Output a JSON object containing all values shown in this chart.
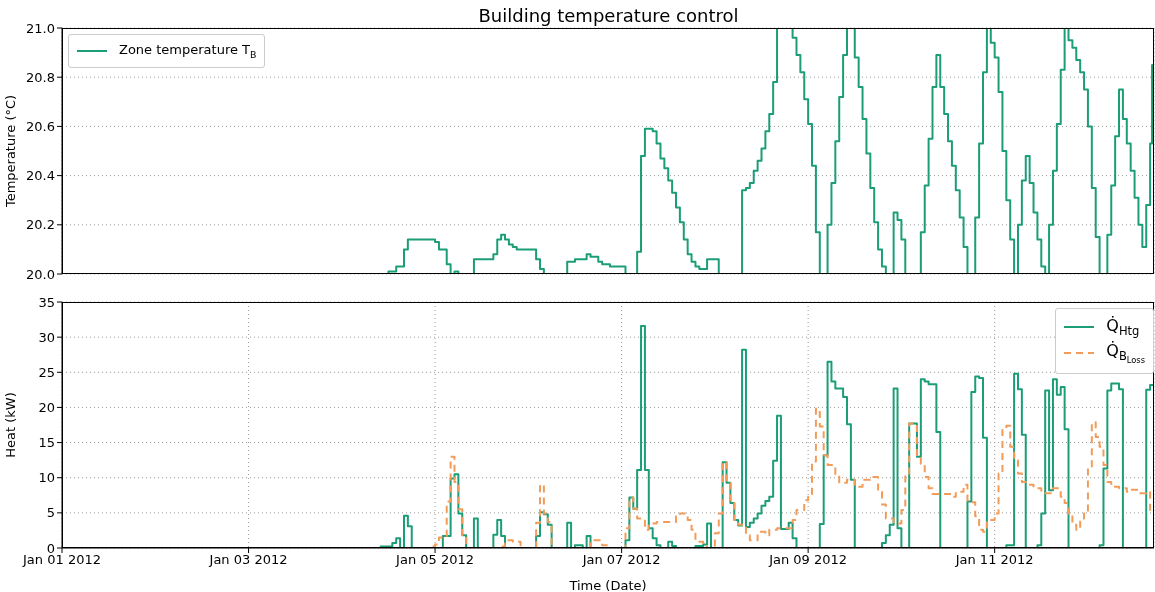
{
  "chart_data": [
    {
      "type": "step",
      "title": "Building temperature control",
      "ylabel": "Temperature (°C)",
      "xlim": [
        "2012-01-01",
        "2012-01-12T17:00"
      ],
      "xticks": [
        {
          "value": "2012-01-01",
          "label": null
        },
        {
          "value": "2012-01-03",
          "label": null
        },
        {
          "value": "2012-01-05",
          "label": null
        },
        {
          "value": "2012-01-07",
          "label": null
        },
        {
          "value": "2012-01-09",
          "label": null
        },
        {
          "value": "2012-01-11",
          "label": null
        }
      ],
      "ylim": [
        20,
        21
      ],
      "yticks": [
        {
          "value": 20,
          "label": "20.0"
        },
        20.2,
        20.4,
        20.6,
        20.8,
        {
          "value": 21,
          "label": "21.0"
        }
      ],
      "grid": true,
      "legend": "top left",
      "tick_labels": "y",
      "series": [
        {
          "name": "Zone temperature T$_{B}$",
          "color": "#1b9e77",
          "x": [
            "2012-01-01T00:00",
            "2012-01-04T12:00",
            "2012-01-04T14:00",
            "2012-01-04T16:00",
            "2012-01-04T17:00",
            "2012-01-05T00:00",
            "2012-01-05T01:00",
            "2012-01-05T03:00",
            "2012-01-05T04:00",
            "2012-01-05T05:00",
            "2012-01-05T06:00",
            "2012-01-05T10:00",
            "2012-01-05T15:00",
            "2012-01-05T16:00",
            "2012-01-05T17:00",
            "2012-01-05T18:00",
            "2012-01-05T19:00",
            "2012-01-05T20:00",
            "2012-01-05T21:00",
            "2012-01-06T02:00",
            "2012-01-06T03:00",
            "2012-01-06T04:00",
            "2012-01-06T10:00",
            "2012-01-06T12:00",
            "2012-01-06T15:00",
            "2012-01-06T16:00",
            "2012-01-06T18:00",
            "2012-01-06T19:00",
            "2012-01-06T21:00",
            "2012-01-07T01:00",
            "2012-01-07T04:00",
            "2012-01-07T05:00",
            "2012-01-07T06:00",
            "2012-01-07T08:00",
            "2012-01-07T09:00",
            "2012-01-07T10:00",
            "2012-01-07T11:00",
            "2012-01-07T12:00",
            "2012-01-07T13:00",
            "2012-01-07T14:00",
            "2012-01-07T15:00",
            "2012-01-07T16:00",
            "2012-01-07T17:00",
            "2012-01-07T18:00",
            "2012-01-07T19:00",
            "2012-01-07T20:00",
            "2012-01-07T22:00",
            "2012-01-08T01:00",
            "2012-01-08T07:00",
            "2012-01-08T08:00",
            "2012-01-08T09:00",
            "2012-01-08T10:00",
            "2012-01-08T11:00",
            "2012-01-08T12:00",
            "2012-01-08T13:00",
            "2012-01-08T14:00",
            "2012-01-08T15:00",
            "2012-01-08T16:00",
            "2012-01-08T20:00",
            "2012-01-08T21:00",
            "2012-01-08T22:00",
            "2012-01-08T23:00",
            "2012-01-09T00:00",
            "2012-01-09T01:00",
            "2012-01-09T02:00",
            "2012-01-09T03:00",
            "2012-01-09T05:00",
            "2012-01-09T06:00",
            "2012-01-09T07:00",
            "2012-01-09T08:00",
            "2012-01-09T09:00",
            "2012-01-09T10:00",
            "2012-01-09T12:00",
            "2012-01-09T13:00",
            "2012-01-09T14:00",
            "2012-01-09T15:00",
            "2012-01-09T16:00",
            "2012-01-09T17:00",
            "2012-01-09T18:00",
            "2012-01-09T19:00",
            "2012-01-09T20:00",
            "2012-01-09T22:00",
            "2012-01-09T23:00",
            "2012-01-10T00:00",
            "2012-01-10T01:00",
            "2012-01-10T05:00",
            "2012-01-10T06:00",
            "2012-01-10T07:00",
            "2012-01-10T08:00",
            "2012-01-10T09:00",
            "2012-01-10T10:00",
            "2012-01-10T11:00",
            "2012-01-10T12:00",
            "2012-01-10T13:00",
            "2012-01-10T14:00",
            "2012-01-10T15:00",
            "2012-01-10T16:00",
            "2012-01-10T17:00",
            "2012-01-10T19:00",
            "2012-01-10T20:00",
            "2012-01-10T21:00",
            "2012-01-10T22:00",
            "2012-01-10T23:00",
            "2012-01-11T00:00",
            "2012-01-11T01:00",
            "2012-01-11T02:00",
            "2012-01-11T03:00",
            "2012-01-11T04:00",
            "2012-01-11T05:00",
            "2012-01-11T06:00",
            "2012-01-11T07:00",
            "2012-01-11T08:00",
            "2012-01-11T09:00",
            "2012-01-11T10:00",
            "2012-01-11T11:00",
            "2012-01-11T12:00",
            "2012-01-11T13:00",
            "2012-01-11T14:00",
            "2012-01-11T15:00",
            "2012-01-11T16:00",
            "2012-01-11T17:00",
            "2012-01-11T18:00",
            "2012-01-11T19:00",
            "2012-01-11T20:00",
            "2012-01-11T21:00",
            "2012-01-11T22:00",
            "2012-01-11T23:00",
            "2012-01-12T00:00",
            "2012-01-12T01:00",
            "2012-01-12T02:00",
            "2012-01-12T03:00",
            "2012-01-12T05:00",
            "2012-01-12T06:00",
            "2012-01-12T07:00",
            "2012-01-12T08:00",
            "2012-01-12T09:00",
            "2012-01-12T10:00",
            "2012-01-12T11:00",
            "2012-01-12T12:00",
            "2012-01-12T13:00",
            "2012-01-12T14:00",
            "2012-01-12T15:00",
            "2012-01-12T16:00",
            "2012-01-12T16:30",
            "2012-01-12T17:00"
          ],
          "values": [
            20.0,
            20.01,
            20.03,
            20.1,
            20.14,
            20.13,
            20.1,
            20.04,
            20.0,
            20.01,
            20.0,
            20.06,
            20.08,
            20.14,
            20.16,
            20.14,
            20.12,
            20.11,
            20.1,
            20.06,
            20.02,
            20.0,
            20.05,
            20.06,
            20.08,
            20.07,
            20.05,
            20.04,
            20.03,
            20.0,
            20.09,
            20.48,
            20.59,
            20.58,
            20.53,
            20.47,
            20.43,
            20.38,
            20.33,
            20.27,
            20.21,
            20.14,
            20.08,
            20.05,
            20.03,
            20.02,
            20.06,
            20.0,
            20.34,
            20.35,
            20.37,
            20.42,
            20.46,
            20.51,
            20.58,
            20.65,
            20.78,
            21.0,
            20.96,
            20.89,
            20.82,
            20.71,
            20.61,
            20.44,
            20.17,
            20.0,
            20.2,
            20.37,
            20.54,
            20.72,
            20.89,
            21.0,
            20.88,
            20.76,
            20.63,
            20.49,
            20.35,
            20.21,
            20.1,
            20.03,
            20.0,
            20.25,
            20.22,
            20.14,
            20.0,
            20.17,
            20.36,
            20.55,
            20.76,
            20.89,
            20.76,
            20.65,
            20.54,
            20.44,
            20.34,
            20.23,
            20.11,
            20.0,
            20.23,
            20.53,
            20.82,
            21.0,
            20.94,
            20.88,
            20.74,
            20.5,
            20.3,
            20.14,
            20.0,
            20.2,
            20.38,
            20.48,
            20.37,
            20.25,
            20.14,
            20.03,
            20.0,
            20.2,
            20.42,
            20.61,
            20.83,
            21.0,
            20.95,
            20.92,
            20.87,
            20.82,
            20.75,
            20.6,
            20.35,
            20.15,
            20.0,
            20.16,
            20.36,
            20.56,
            20.75,
            20.63,
            20.53,
            20.42,
            20.31,
            20.2,
            20.11,
            20.28,
            20.53,
            20.85,
            20.85
          ]
        }
      ]
    },
    {
      "type": "step",
      "xlabel": "Time (Date)",
      "ylabel": "Heat (kW)",
      "xlim": [
        "2012-01-01",
        "2012-01-12T17:00"
      ],
      "xticks": [
        {
          "value": "2012-01-01",
          "label": "Jan 01 2012"
        },
        {
          "value": "2012-01-03",
          "label": "Jan 03 2012"
        },
        {
          "value": "2012-01-05",
          "label": "Jan 05 2012"
        },
        {
          "value": "2012-01-07",
          "label": "Jan 07 2012"
        },
        {
          "value": "2012-01-09",
          "label": "Jan 09 2012"
        },
        {
          "value": "2012-01-11",
          "label": "Jan 11 2012"
        }
      ],
      "ylim": [
        0,
        35
      ],
      "yticks": [
        0,
        5,
        10,
        15,
        20,
        25,
        30,
        35
      ],
      "grid": true,
      "legend": "top right",
      "series": [
        {
          "name": "Q̇$_{Htg}$",
          "color": "#1b9e77",
          "line_style": "solid",
          "x": [
            "2012-01-01T00:00",
            "2012-01-04T10:00",
            "2012-01-04T13:00",
            "2012-01-04T14:00",
            "2012-01-04T15:00",
            "2012-01-04T16:00",
            "2012-01-04T17:00",
            "2012-01-04T18:00",
            "2012-01-05T02:00",
            "2012-01-05T04:00",
            "2012-01-05T05:00",
            "2012-01-05T06:00",
            "2012-01-05T07:00",
            "2012-01-05T08:00",
            "2012-01-05T10:00",
            "2012-01-05T11:00",
            "2012-01-05T15:00",
            "2012-01-05T16:00",
            "2012-01-05T17:00",
            "2012-01-05T18:00",
            "2012-01-06T02:00",
            "2012-01-06T03:00",
            "2012-01-06T04:00",
            "2012-01-06T05:00",
            "2012-01-06T06:00",
            "2012-01-06T10:00",
            "2012-01-06T11:00",
            "2012-01-06T12:00",
            "2012-01-06T14:00",
            "2012-01-06T15:00",
            "2012-01-06T16:00",
            "2012-01-07T01:00",
            "2012-01-07T02:00",
            "2012-01-07T03:00",
            "2012-01-07T04:00",
            "2012-01-07T05:00",
            "2012-01-07T06:00",
            "2012-01-07T07:00",
            "2012-01-07T08:00",
            "2012-01-07T09:00",
            "2012-01-07T10:00",
            "2012-01-07T12:00",
            "2012-01-07T13:00",
            "2012-01-07T14:00",
            "2012-01-07T19:00",
            "2012-01-07T21:00",
            "2012-01-07T22:00",
            "2012-01-07T23:00",
            "2012-01-08T02:00",
            "2012-01-08T03:00",
            "2012-01-08T04:00",
            "2012-01-08T05:00",
            "2012-01-08T06:00",
            "2012-01-08T07:00",
            "2012-01-08T08:00",
            "2012-01-08T09:00",
            "2012-01-08T10:00",
            "2012-01-08T11:00",
            "2012-01-08T12:00",
            "2012-01-08T13:00",
            "2012-01-08T14:00",
            "2012-01-08T15:00",
            "2012-01-08T16:00",
            "2012-01-08T17:00",
            "2012-01-08T19:00",
            "2012-01-08T20:00",
            "2012-01-08T21:00",
            "2012-01-09T03:00",
            "2012-01-09T04:00",
            "2012-01-09T05:00",
            "2012-01-09T06:00",
            "2012-01-09T07:00",
            "2012-01-09T09:00",
            "2012-01-09T10:00",
            "2012-01-09T11:00",
            "2012-01-09T12:00",
            "2012-01-09T19:00",
            "2012-01-09T20:00",
            "2012-01-09T21:00",
            "2012-01-09T22:00",
            "2012-01-09T23:00",
            "2012-01-10T00:00",
            "2012-01-10T02:00",
            "2012-01-10T04:00",
            "2012-01-10T05:00",
            "2012-01-10T06:00",
            "2012-01-10T07:00",
            "2012-01-10T09:00",
            "2012-01-10T10:00",
            "2012-01-10T17:00",
            "2012-01-10T18:00",
            "2012-01-10T19:00",
            "2012-01-10T20:00",
            "2012-01-10T21:00",
            "2012-01-10T22:00",
            "2012-01-11T03:00",
            "2012-01-11T05:00",
            "2012-01-11T06:00",
            "2012-01-11T07:00",
            "2012-01-11T08:00",
            "2012-01-11T11:00",
            "2012-01-11T12:00",
            "2012-01-11T13:00",
            "2012-01-11T14:00",
            "2012-01-11T15:00",
            "2012-01-11T16:00",
            "2012-01-11T17:00",
            "2012-01-11T18:00",
            "2012-01-11T19:00",
            "2012-01-12T03:00",
            "2012-01-12T04:00",
            "2012-01-12T05:00",
            "2012-01-12T06:00",
            "2012-01-12T08:00",
            "2012-01-12T09:00",
            "2012-01-12T15:00",
            "2012-01-12T16:00",
            "2012-01-12T17:00"
          ],
          "values": [
            0,
            0.2,
            0.7,
            1.4,
            0,
            4.6,
            3.1,
            0,
            1.7,
            9.9,
            10.5,
            4.9,
            1.8,
            0,
            4.2,
            0,
            1.9,
            4.0,
            1.7,
            0,
            1.7,
            5.1,
            4.8,
            3.3,
            0,
            3.6,
            0,
            0.4,
            0,
            1.7,
            0,
            1.1,
            7.2,
            5.6,
            11.1,
            31.6,
            11.1,
            2.8,
            1.4,
            0.4,
            0,
            0.9,
            0.3,
            0,
            0.3,
            0.5,
            3.5,
            0,
            12.2,
            9.3,
            6.4,
            4.0,
            3.2,
            28.2,
            3.0,
            3.6,
            4.2,
            4.9,
            6.0,
            6.7,
            7.3,
            12.4,
            18.8,
            2.7,
            3.6,
            1.4,
            0,
            3.4,
            13.2,
            26.5,
            23.7,
            22.7,
            21.5,
            17.6,
            9.7,
            0,
            0.7,
            1.8,
            3.3,
            22.7,
            2.8,
            0,
            17.7,
            13.0,
            24.0,
            23.7,
            23.3,
            16.5,
            0,
            6.6,
            22.2,
            24.4,
            24.2,
            15.7,
            0,
            0.4,
            24.8,
            22.6,
            16.1,
            0,
            0.4,
            4.9,
            22.4,
            8.2,
            24.0,
            21.8,
            22.9,
            16.9,
            0,
            0.4,
            11.3,
            22.4,
            23.4,
            22.6,
            0,
            22.5,
            23.2,
            23.2
          ]
        },
        {
          "name": "Q̇$_{B}$$_{Loss}$",
          "color": "#f39c5a",
          "line_style": "dashed",
          "x": [
            "2012-01-01T00:00",
            "2012-01-04T23:00",
            "2012-01-05T00:00",
            "2012-01-05T01:00",
            "2012-01-05T03:00",
            "2012-01-05T04:00",
            "2012-01-05T05:00",
            "2012-01-05T06:00",
            "2012-01-05T07:00",
            "2012-01-05T08:00",
            "2012-01-05T17:00",
            "2012-01-05T18:00",
            "2012-01-05T20:00",
            "2012-01-05T22:00",
            "2012-01-06T02:00",
            "2012-01-06T03:00",
            "2012-01-06T04:00",
            "2012-01-06T05:00",
            "2012-01-06T06:00",
            "2012-01-06T16:00",
            "2012-01-06T19:00",
            "2012-01-06T21:00",
            "2012-01-07T01:00",
            "2012-01-07T02:00",
            "2012-01-07T03:00",
            "2012-01-07T04:00",
            "2012-01-07T06:00",
            "2012-01-07T07:00",
            "2012-01-07T09:00",
            "2012-01-07T14:00",
            "2012-01-07T15:00",
            "2012-01-07T17:00",
            "2012-01-07T18:00",
            "2012-01-07T19:00",
            "2012-01-07T21:00",
            "2012-01-07T22:00",
            "2012-01-08T00:00",
            "2012-01-08T01:00",
            "2012-01-08T02:00",
            "2012-01-08T03:00",
            "2012-01-08T04:00",
            "2012-01-08T05:00",
            "2012-01-08T06:00",
            "2012-01-08T08:00",
            "2012-01-08T09:00",
            "2012-01-08T11:00",
            "2012-01-08T13:00",
            "2012-01-08T14:00",
            "2012-01-08T16:00",
            "2012-01-08T20:00",
            "2012-01-08T21:00",
            "2012-01-08T23:00",
            "2012-01-09T00:00",
            "2012-01-09T01:00",
            "2012-01-09T02:00",
            "2012-01-09T03:00",
            "2012-01-09T04:00",
            "2012-01-09T05:00",
            "2012-01-09T07:00",
            "2012-01-09T08:00",
            "2012-01-09T10:00",
            "2012-01-09T12:00",
            "2012-01-09T14:00",
            "2012-01-09T16:00",
            "2012-01-09T18:00",
            "2012-01-09T19:00",
            "2012-01-09T20:00",
            "2012-01-09T22:00",
            "2012-01-10T00:00",
            "2012-01-10T01:00",
            "2012-01-10T02:00",
            "2012-01-10T04:00",
            "2012-01-10T05:00",
            "2012-01-10T06:00",
            "2012-01-10T07:00",
            "2012-01-10T08:00",
            "2012-01-10T13:00",
            "2012-01-10T14:00",
            "2012-01-10T16:00",
            "2012-01-10T17:00",
            "2012-01-10T19:00",
            "2012-01-10T20:00",
            "2012-01-10T21:00",
            "2012-01-10T22:00",
            "2012-01-11T00:00",
            "2012-01-11T01:00",
            "2012-01-11T02:00",
            "2012-01-11T03:00",
            "2012-01-11T04:00",
            "2012-01-11T05:00",
            "2012-01-11T06:00",
            "2012-01-11T07:00",
            "2012-01-11T08:00",
            "2012-01-11T10:00",
            "2012-01-11T12:00",
            "2012-01-11T15:00",
            "2012-01-11T17:00",
            "2012-01-11T18:00",
            "2012-01-11T19:00",
            "2012-01-11T20:00",
            "2012-01-11T21:00",
            "2012-01-11T22:00",
            "2012-01-11T23:00",
            "2012-01-12T00:00",
            "2012-01-12T01:00",
            "2012-01-12T02:00",
            "2012-01-12T03:00",
            "2012-01-12T04:00",
            "2012-01-12T05:00",
            "2012-01-12T06:00",
            "2012-01-12T08:00",
            "2012-01-12T10:00",
            "2012-01-12T11:00",
            "2012-01-12T13:00",
            "2012-01-12T15:00",
            "2012-01-12T16:00",
            "2012-01-12T17:00"
          ],
          "values": [
            0,
            0.2,
            0.5,
            1.5,
            6.6,
            13.0,
            9.4,
            5.5,
            1.6,
            0,
            0.2,
            1.1,
            0.9,
            0,
            3.6,
            9.0,
            4.9,
            3.7,
            0,
            1.1,
            0.4,
            0,
            2.8,
            7.2,
            5.6,
            4.2,
            2.6,
            3.5,
            3.7,
            4.5,
            4.9,
            4.0,
            2.6,
            0.9,
            0.2,
            0,
            2.1,
            4.9,
            12.2,
            9.2,
            6.4,
            4.0,
            3.3,
            1.8,
            1.1,
            2.3,
            1.8,
            2.6,
            2.8,
            4.0,
            5.4,
            6.8,
            7.3,
            12.3,
            19.8,
            17.3,
            13.2,
            11.8,
            10.5,
            9.3,
            9.7,
            8.7,
            9.7,
            10.1,
            8.0,
            6.2,
            4.2,
            3.5,
            5.4,
            10.6,
            17.7,
            13.0,
            12.0,
            10.1,
            8.5,
            7.7,
            7.3,
            8.0,
            9.0,
            6.5,
            4.5,
            2.6,
            2.3,
            4.0,
            4.9,
            10.6,
            16.8,
            17.4,
            14.4,
            12.5,
            10.6,
            9.4,
            9.0,
            8.5,
            7.8,
            8.5,
            7.3,
            6.4,
            4.7,
            3.3,
            2.6,
            4.2,
            4.9,
            11.6,
            17.9,
            15.8,
            14.4,
            11.8,
            9.4,
            8.7,
            8.5,
            8.0,
            8.3,
            7.8,
            8.0,
            5.4,
            5.4
          ]
        }
      ]
    }
  ]
}
